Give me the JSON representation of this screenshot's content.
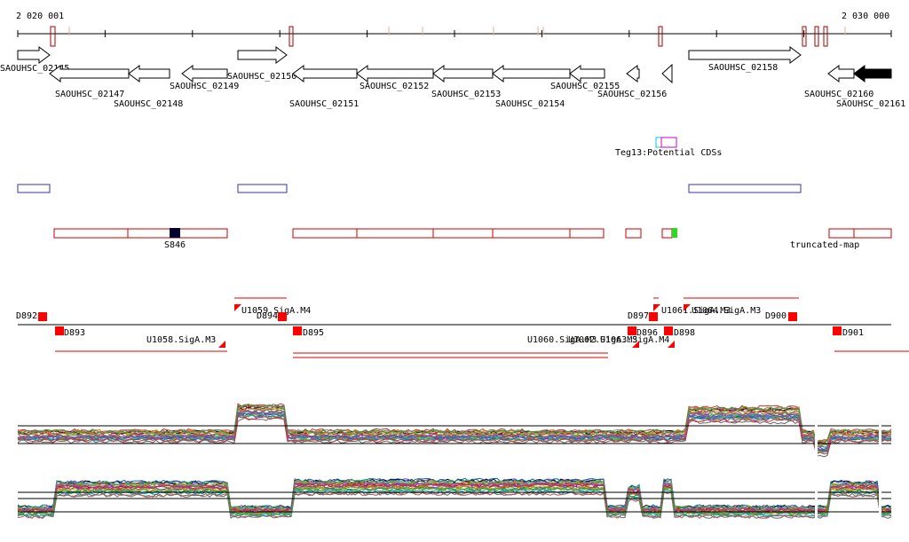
{
  "ruler": {
    "start": "2 020 001",
    "end": "2 030 000"
  },
  "genes": [
    {
      "label": "SAOUHSC_02145"
    },
    {
      "label": "SAOUHSC_02147"
    },
    {
      "label": "SAOUHSC_02148"
    },
    {
      "label": "SAOUHSC_02149"
    },
    {
      "label": "SAOUHSC_02150"
    },
    {
      "label": "SAOUHSC_02151"
    },
    {
      "label": "SAOUHSC_02152"
    },
    {
      "label": "SAOUHSC_02153"
    },
    {
      "label": "SAOUHSC_02154"
    },
    {
      "label": "SAOUHSC_02155"
    },
    {
      "label": "SAOUHSC_02156"
    },
    {
      "label": "SAOUHSC_02158"
    },
    {
      "label": "SAOUHSC_02160"
    },
    {
      "label": "SAOUHSC_02161"
    }
  ],
  "potential_cds": {
    "label": "Teg13:Potential CDSs"
  },
  "features": {
    "s846": "S846",
    "truncated": "truncated-map"
  },
  "regulatory": [
    {
      "label": "D892"
    },
    {
      "label": "D893"
    },
    {
      "label": "U1058.SigA.M3"
    },
    {
      "label": "U1059.SigA.M4"
    },
    {
      "label": "D894"
    },
    {
      "label": "D895"
    },
    {
      "label": "U1060.SigA.M3"
    },
    {
      "label": "U1062.SigA.M3"
    },
    {
      "label": "U1063.SigA.M4"
    },
    {
      "label": "D896"
    },
    {
      "label": "D897"
    },
    {
      "label": "U1061.SigA.M3"
    },
    {
      "label": "U1064.SigA.M3"
    },
    {
      "label": "D898"
    },
    {
      "label": "D900"
    },
    {
      "label": "D901"
    }
  ]
}
